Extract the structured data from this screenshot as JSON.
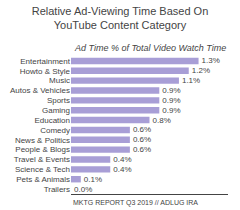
{
  "chart_data": {
    "type": "bar",
    "title": "Relative Ad-Viewing Time Based On\nYouTube Content Category",
    "subtitle": "Ad Time % of Total Video Watch Time",
    "annotations": [
      "MKTG REPORT Q3 2019 // ADLUG IRA"
    ],
    "orientation": "horizontal",
    "categories": [
      "Entertainment",
      "Howto & Style",
      "Music",
      "Autos & Vehicles",
      "Sports",
      "Gaming",
      "Education",
      "Comedy",
      "News & Politics",
      "People & Blogs",
      "Travel & Events",
      "Science & Tech",
      "Pets & Animals",
      "Trailers"
    ],
    "values": [
      1.3,
      1.2,
      1.1,
      0.9,
      0.9,
      0.9,
      0.8,
      0.6,
      0.6,
      0.6,
      0.4,
      0.4,
      0.1,
      0.0
    ],
    "value_labels": [
      "1.3%",
      "1.2%",
      "1.1%",
      "0.9%",
      "0.9%",
      "0.9%",
      "0.8%",
      "0.6%",
      "0.6%",
      "0.6%",
      "0.4%",
      "0.4%",
      "0.1%",
      "0.0%"
    ],
    "data_labels": true,
    "color": "#a89ed6",
    "xlim": [
      0,
      1.6
    ],
    "tick_labels": "y",
    "grid": false
  }
}
